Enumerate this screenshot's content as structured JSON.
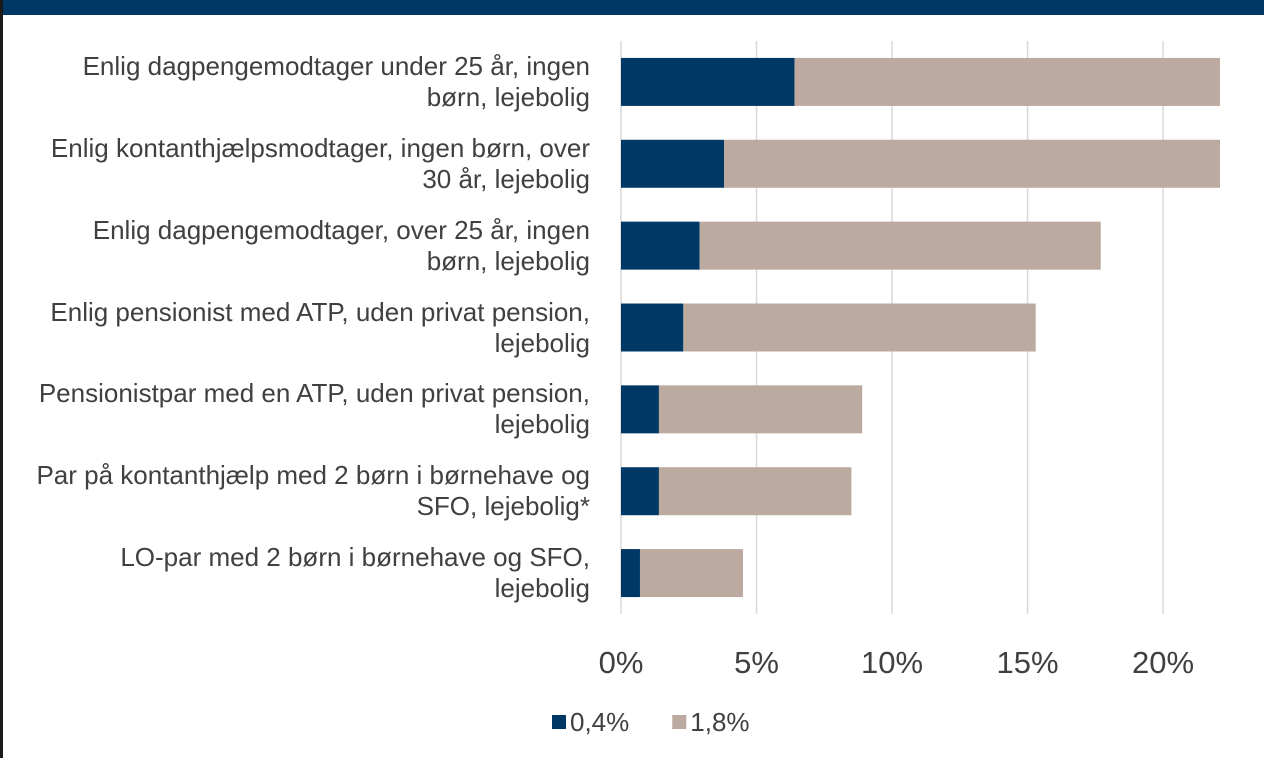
{
  "chart_data": {
    "type": "stacked_barh",
    "categories": [
      "Enlig dagpengemodtager under 25 år, ingen børn, lejebolig",
      "Enlig kontanthjælpsmodtager, ingen børn, over 30 år, lejebolig",
      "Enlig dagpengemodtager, over 25 år, ingen børn, lejebolig",
      "Enlig pensionist med ATP, uden privat pension, lejebolig",
      "Pensionistpar med en ATP, uden privat pension, lejebolig",
      "Par på kontanthjælp med 2 børn i børnehave og SFO, lejebolig*",
      "LO-par med 2 børn i børnehave og SFO, lejebolig"
    ],
    "series": [
      {
        "name": "0,4%",
        "color": "#003865",
        "values": [
          6.4,
          3.8,
          2.9,
          2.3,
          1.4,
          1.4,
          0.7
        ]
      },
      {
        "name": "1,8%",
        "color": "#bcaaa0",
        "values": [
          15.7,
          18.3,
          14.8,
          13.0,
          7.5,
          7.1,
          3.8
        ]
      }
    ],
    "xlim": [
      0,
      22.1
    ],
    "xticks": [
      {
        "value": 0,
        "label": "0%"
      },
      {
        "value": 5,
        "label": "5%"
      },
      {
        "value": 10,
        "label": "10%"
      },
      {
        "value": 15,
        "label": "15%"
      },
      {
        "value": 20,
        "label": "20%"
      }
    ],
    "grid": true,
    "legend": "bottom"
  }
}
